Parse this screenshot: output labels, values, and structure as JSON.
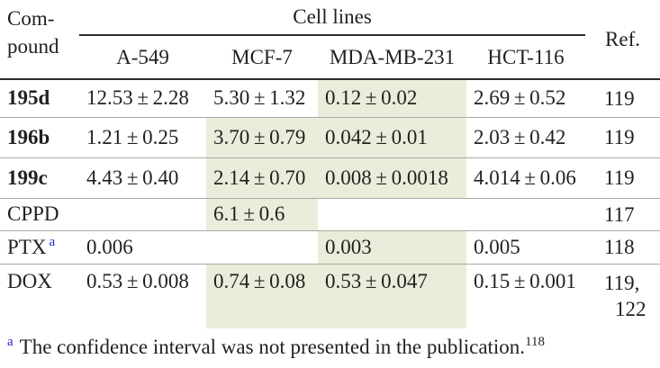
{
  "header": {
    "compound_line1": "Com-",
    "compound_line2": "pound",
    "group_label": "Cell lines",
    "ref_label": "Ref.",
    "columns": [
      "A-549",
      "MCF-7",
      "MDA-MB-231",
      "HCT-116"
    ]
  },
  "rows": [
    {
      "compound": "195d",
      "bold": true,
      "marker": "",
      "cells": [
        {
          "text": "12.53 ± 2.28",
          "hl": false
        },
        {
          "text": "5.30 ± 1.32",
          "hl": false
        },
        {
          "text": "0.12 ± 0.02",
          "hl": true
        },
        {
          "text": "2.69 ± 0.52",
          "hl": false
        }
      ],
      "ref_lines": [
        "119"
      ]
    },
    {
      "compound": "196b",
      "bold": true,
      "marker": "",
      "cells": [
        {
          "text": "1.21 ± 0.25",
          "hl": false
        },
        {
          "text": "3.70 ± 0.79",
          "hl": true
        },
        {
          "text": "0.042 ± 0.01",
          "hl": true
        },
        {
          "text": "2.03 ± 0.42",
          "hl": false
        }
      ],
      "ref_lines": [
        "119"
      ]
    },
    {
      "compound": "199c",
      "bold": true,
      "marker": "",
      "cells": [
        {
          "text": "4.43 ± 0.40",
          "hl": false
        },
        {
          "text": "2.14 ± 0.70",
          "hl": true
        },
        {
          "text": "0.008 ± 0.0018",
          "hl": true
        },
        {
          "text": "4.014 ± 0.06",
          "hl": false
        }
      ],
      "ref_lines": [
        "119"
      ]
    },
    {
      "compound": "CPPD",
      "bold": false,
      "marker": "",
      "cells": [
        {
          "text": "",
          "hl": false
        },
        {
          "text": "6.1 ± 0.6",
          "hl": true
        },
        {
          "text": "",
          "hl": false
        },
        {
          "text": "",
          "hl": false
        }
      ],
      "ref_lines": [
        "117"
      ]
    },
    {
      "compound": "PTX",
      "bold": false,
      "marker": "a",
      "cells": [
        {
          "text": "0.006",
          "hl": false
        },
        {
          "text": "",
          "hl": false
        },
        {
          "text": "0.003",
          "hl": true
        },
        {
          "text": "0.005",
          "hl": false
        }
      ],
      "ref_lines": [
        "118"
      ]
    },
    {
      "compound": "DOX",
      "bold": false,
      "marker": "",
      "cells": [
        {
          "text": "0.53 ± 0.008",
          "hl": false
        },
        {
          "text": "0.74 ± 0.08",
          "hl": true
        },
        {
          "text": "0.53 ± 0.047",
          "hl": true
        },
        {
          "text": "0.15 ± 0.001",
          "hl": false
        }
      ],
      "ref_lines": [
        "119,",
        "122"
      ]
    }
  ],
  "footnote": {
    "marker": "a",
    "text": "The confidence interval was not presented in the publication.",
    "citation": "118"
  },
  "colors": {
    "highlight": "#e9edda",
    "marker_blue": "#2121d8",
    "text": "#231f20",
    "separator": "#a8aaa4"
  }
}
